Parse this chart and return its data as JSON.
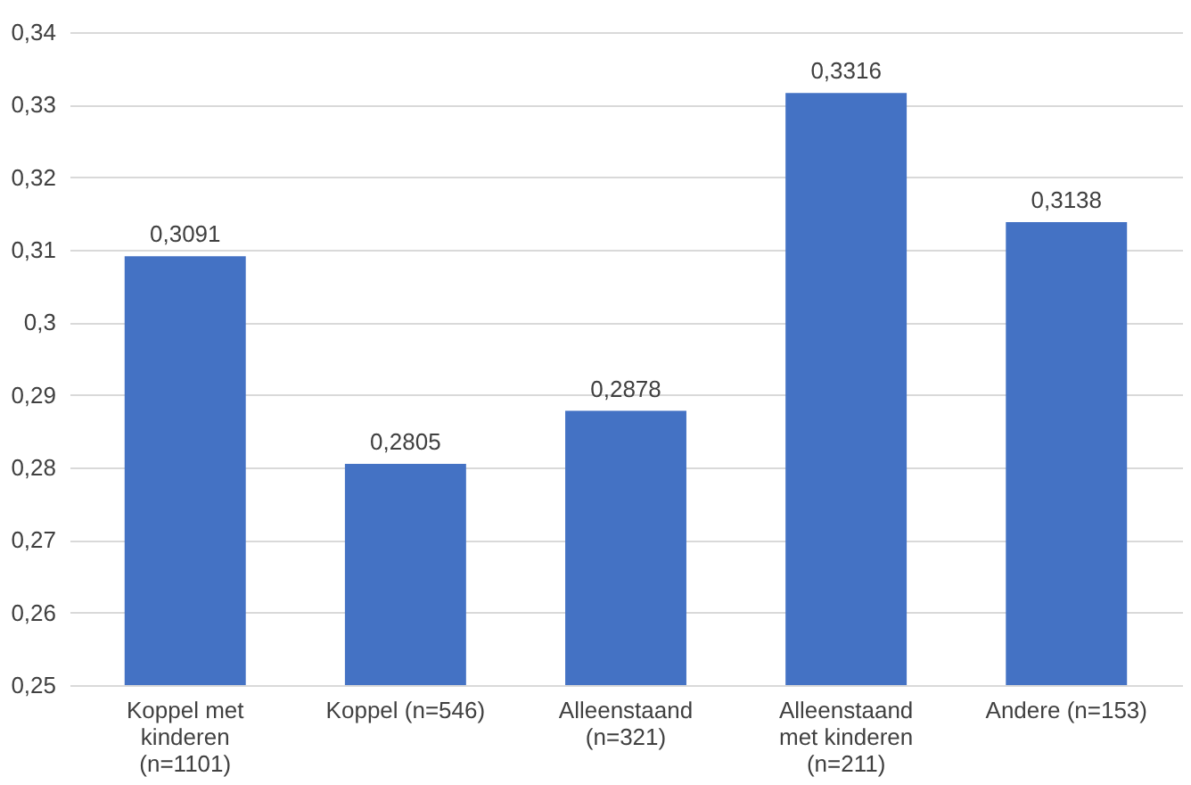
{
  "chart_data": {
    "type": "bar",
    "categories": [
      "Koppel met\nkinderen\n(n=1101)",
      "Koppel (n=546)",
      "Alleenstaand\n(n=321)",
      "Alleenstaand\nmet kinderen\n(n=211)",
      "Andere (n=153)"
    ],
    "values": [
      0.3091,
      0.2805,
      0.2878,
      0.3316,
      0.3138
    ],
    "value_labels": [
      "0,3091",
      "0,2805",
      "0,2878",
      "0,3316",
      "0,3138"
    ],
    "color": "#4472c4",
    "ylim": [
      0.25,
      0.34
    ],
    "yticks": [
      {
        "value": 0.25,
        "label": "0,25"
      },
      {
        "value": 0.26,
        "label": "0,26"
      },
      {
        "value": 0.27,
        "label": "0,27"
      },
      {
        "value": 0.28,
        "label": "0,28"
      },
      {
        "value": 0.29,
        "label": "0,29"
      },
      {
        "value": 0.3,
        "label": "0,3"
      },
      {
        "value": 0.31,
        "label": "0,31"
      },
      {
        "value": 0.32,
        "label": "0,32"
      },
      {
        "value": 0.33,
        "label": "0,33"
      },
      {
        "value": 0.34,
        "label": "0,34"
      }
    ],
    "grid": "y"
  }
}
